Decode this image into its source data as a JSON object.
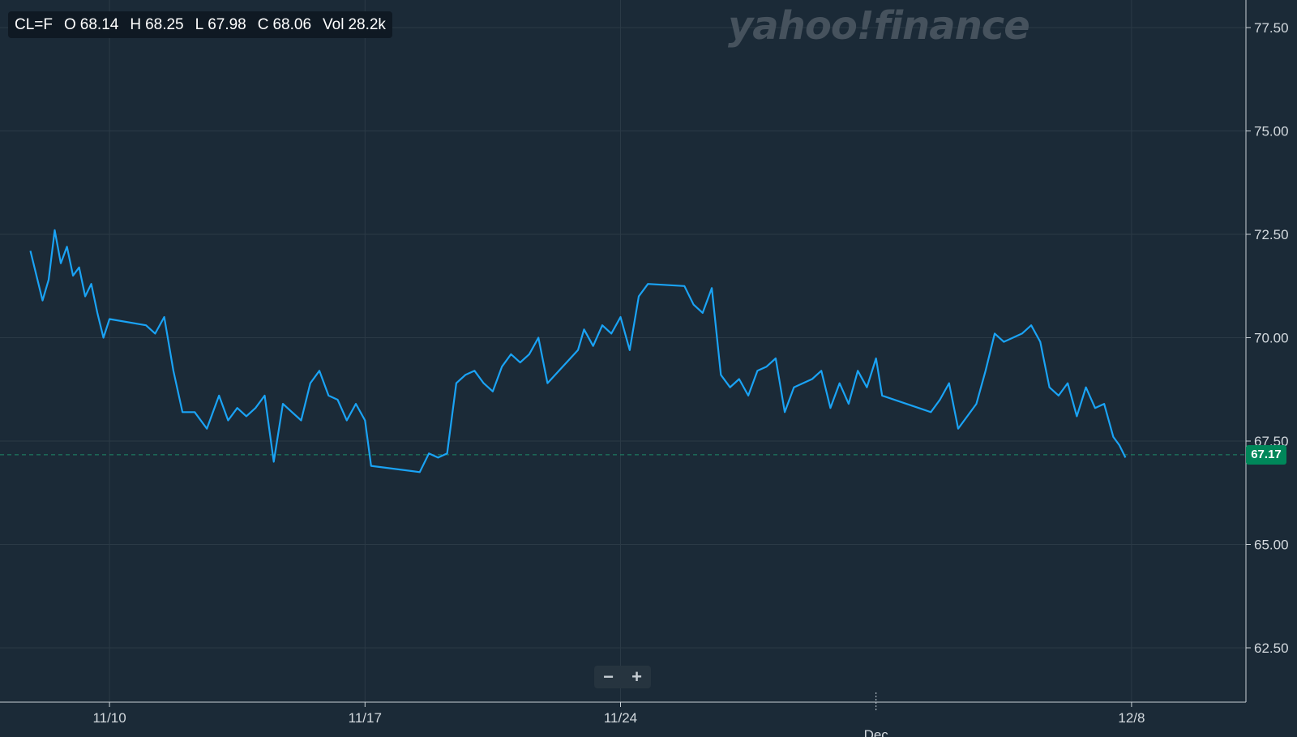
{
  "ohlc": {
    "symbol": "CL=F",
    "open_label": "O",
    "open": "68.14",
    "high_label": "H",
    "high": "68.25",
    "low_label": "L",
    "low": "67.98",
    "close_label": "C",
    "close": "68.06",
    "vol_label": "Vol",
    "vol": "28.2k"
  },
  "watermark": "yahoo!finance",
  "zoom": {
    "minus": "−",
    "plus": "+"
  },
  "current_price": "67.17",
  "colors": {
    "background": "#1b2a37",
    "line": "#1aa3f5",
    "grid": "#2b3a46",
    "axis": "#c8d0d6",
    "price_tag": "#00875a",
    "price_line": "#1e8a6a"
  },
  "chart_data": {
    "type": "line",
    "title": "",
    "xlabel": "",
    "ylabel": "",
    "ylim": [
      61.5,
      78.0
    ],
    "y_ticks": [
      62.5,
      65.0,
      67.5,
      70.0,
      72.5,
      75.0,
      77.5
    ],
    "y_tick_labels": [
      "62.50",
      "65.00",
      "67.50",
      "70.00",
      "72.50",
      "75.00",
      "77.50"
    ],
    "x_range": [
      "2025-11-07",
      "2025-12-11"
    ],
    "x_ticks": [
      {
        "date": "2025-11-10",
        "label": "11/10"
      },
      {
        "date": "2025-11-17",
        "label": "11/17"
      },
      {
        "date": "2025-11-24",
        "label": "11/24"
      },
      {
        "date": "2025-12-08",
        "label": "12/8"
      }
    ],
    "month_marker": {
      "date": "2025-12-01",
      "label": "Dec"
    },
    "grid": true,
    "current_price_line": 67.17,
    "series": [
      {
        "name": "CL=F",
        "points": [
          [
            "2025-11-07 20:00",
            72.1
          ],
          [
            "2025-11-08 00:00",
            71.5
          ],
          [
            "2025-11-08 04:00",
            70.9
          ],
          [
            "2025-11-08 08:00",
            71.4
          ],
          [
            "2025-11-08 12:00",
            72.6
          ],
          [
            "2025-11-08 16:00",
            71.8
          ],
          [
            "2025-11-08 20:00",
            72.2
          ],
          [
            "2025-11-09 00:00",
            71.5
          ],
          [
            "2025-11-09 04:00",
            71.7
          ],
          [
            "2025-11-09 08:00",
            71.0
          ],
          [
            "2025-11-09 12:00",
            71.3
          ],
          [
            "2025-11-09 16:00",
            70.6
          ],
          [
            "2025-11-09 20:00",
            70.0
          ],
          [
            "2025-11-10 00:00",
            70.45
          ],
          [
            "2025-11-11 00:00",
            70.3
          ],
          [
            "2025-11-11 06:00",
            70.1
          ],
          [
            "2025-11-11 12:00",
            70.5
          ],
          [
            "2025-11-11 18:00",
            69.2
          ],
          [
            "2025-11-12 00:00",
            68.2
          ],
          [
            "2025-11-12 08:00",
            68.2
          ],
          [
            "2025-11-12 16:00",
            67.8
          ],
          [
            "2025-11-13 00:00",
            68.6
          ],
          [
            "2025-11-13 06:00",
            68.0
          ],
          [
            "2025-11-13 12:00",
            68.3
          ],
          [
            "2025-11-13 18:00",
            68.1
          ],
          [
            "2025-11-14 00:00",
            68.3
          ],
          [
            "2025-11-14 06:00",
            68.6
          ],
          [
            "2025-11-14 12:00",
            67.0
          ],
          [
            "2025-11-14 18:00",
            68.4
          ],
          [
            "2025-11-15 00:00",
            68.2
          ],
          [
            "2025-11-15 06:00",
            68.0
          ],
          [
            "2025-11-15 12:00",
            68.9
          ],
          [
            "2025-11-15 18:00",
            69.2
          ],
          [
            "2025-11-16 00:00",
            68.6
          ],
          [
            "2025-11-16 06:00",
            68.5
          ],
          [
            "2025-11-16 12:00",
            68.0
          ],
          [
            "2025-11-16 18:00",
            68.4
          ],
          [
            "2025-11-17 00:00",
            68.0
          ],
          [
            "2025-11-17 04:00",
            66.9
          ],
          [
            "2025-11-18 12:00",
            66.75
          ],
          [
            "2025-11-18 18:00",
            67.2
          ],
          [
            "2025-11-19 00:00",
            67.1
          ],
          [
            "2025-11-19 06:00",
            67.2
          ],
          [
            "2025-11-19 12:00",
            68.9
          ],
          [
            "2025-11-19 18:00",
            69.1
          ],
          [
            "2025-11-20 00:00",
            69.2
          ],
          [
            "2025-11-20 06:00",
            68.9
          ],
          [
            "2025-11-20 12:00",
            68.7
          ],
          [
            "2025-11-20 18:00",
            69.3
          ],
          [
            "2025-11-21 00:00",
            69.6
          ],
          [
            "2025-11-21 06:00",
            69.4
          ],
          [
            "2025-11-21 12:00",
            69.6
          ],
          [
            "2025-11-21 18:00",
            70.0
          ],
          [
            "2025-11-22 00:00",
            68.9
          ],
          [
            "2025-11-22 20:00",
            69.7
          ],
          [
            "2025-11-23 00:00",
            70.2
          ],
          [
            "2025-11-23 06:00",
            69.8
          ],
          [
            "2025-11-23 12:00",
            70.3
          ],
          [
            "2025-11-23 18:00",
            70.1
          ],
          [
            "2025-11-24 00:00",
            70.5
          ],
          [
            "2025-11-24 06:00",
            69.7
          ],
          [
            "2025-11-24 12:00",
            71.0
          ],
          [
            "2025-11-24 18:00",
            71.3
          ],
          [
            "2025-11-25 18:00",
            71.25
          ],
          [
            "2025-11-26 00:00",
            70.8
          ],
          [
            "2025-11-26 06:00",
            70.6
          ],
          [
            "2025-11-26 12:00",
            71.2
          ],
          [
            "2025-11-26 18:00",
            69.1
          ],
          [
            "2025-11-27 00:00",
            68.8
          ],
          [
            "2025-11-27 06:00",
            69.0
          ],
          [
            "2025-11-27 12:00",
            68.6
          ],
          [
            "2025-11-27 18:00",
            69.2
          ],
          [
            "2025-11-28 00:00",
            69.3
          ],
          [
            "2025-11-28 06:00",
            69.5
          ],
          [
            "2025-11-28 12:00",
            68.2
          ],
          [
            "2025-11-28 18:00",
            68.8
          ],
          [
            "2025-11-29 00:00",
            68.9
          ],
          [
            "2025-11-29 06:00",
            69.0
          ],
          [
            "2025-11-29 12:00",
            69.2
          ],
          [
            "2025-11-29 18:00",
            68.3
          ],
          [
            "2025-11-30 00:00",
            68.9
          ],
          [
            "2025-11-30 06:00",
            68.4
          ],
          [
            "2025-11-30 12:00",
            69.2
          ],
          [
            "2025-11-30 18:00",
            68.8
          ],
          [
            "2025-12-01 00:00",
            69.5
          ],
          [
            "2025-12-01 04:00",
            68.6
          ],
          [
            "2025-12-02 12:00",
            68.2
          ],
          [
            "2025-12-02 18:00",
            68.5
          ],
          [
            "2025-12-03 00:00",
            68.9
          ],
          [
            "2025-12-03 06:00",
            67.8
          ],
          [
            "2025-12-03 12:00",
            68.1
          ],
          [
            "2025-12-03 18:00",
            68.4
          ],
          [
            "2025-12-04 00:00",
            69.2
          ],
          [
            "2025-12-04 06:00",
            70.1
          ],
          [
            "2025-12-04 12:00",
            69.9
          ],
          [
            "2025-12-04 18:00",
            70.0
          ],
          [
            "2025-12-05 00:00",
            70.1
          ],
          [
            "2025-12-05 06:00",
            70.3
          ],
          [
            "2025-12-05 12:00",
            69.9
          ],
          [
            "2025-12-05 18:00",
            68.8
          ],
          [
            "2025-12-06 00:00",
            68.6
          ],
          [
            "2025-12-06 06:00",
            68.9
          ],
          [
            "2025-12-06 12:00",
            68.1
          ],
          [
            "2025-12-06 18:00",
            68.8
          ],
          [
            "2025-12-07 00:00",
            68.3
          ],
          [
            "2025-12-07 06:00",
            68.4
          ],
          [
            "2025-12-07 12:00",
            67.6
          ],
          [
            "2025-12-07 16:00",
            67.4
          ],
          [
            "2025-12-07 20:00",
            67.1
          ]
        ]
      }
    ]
  }
}
